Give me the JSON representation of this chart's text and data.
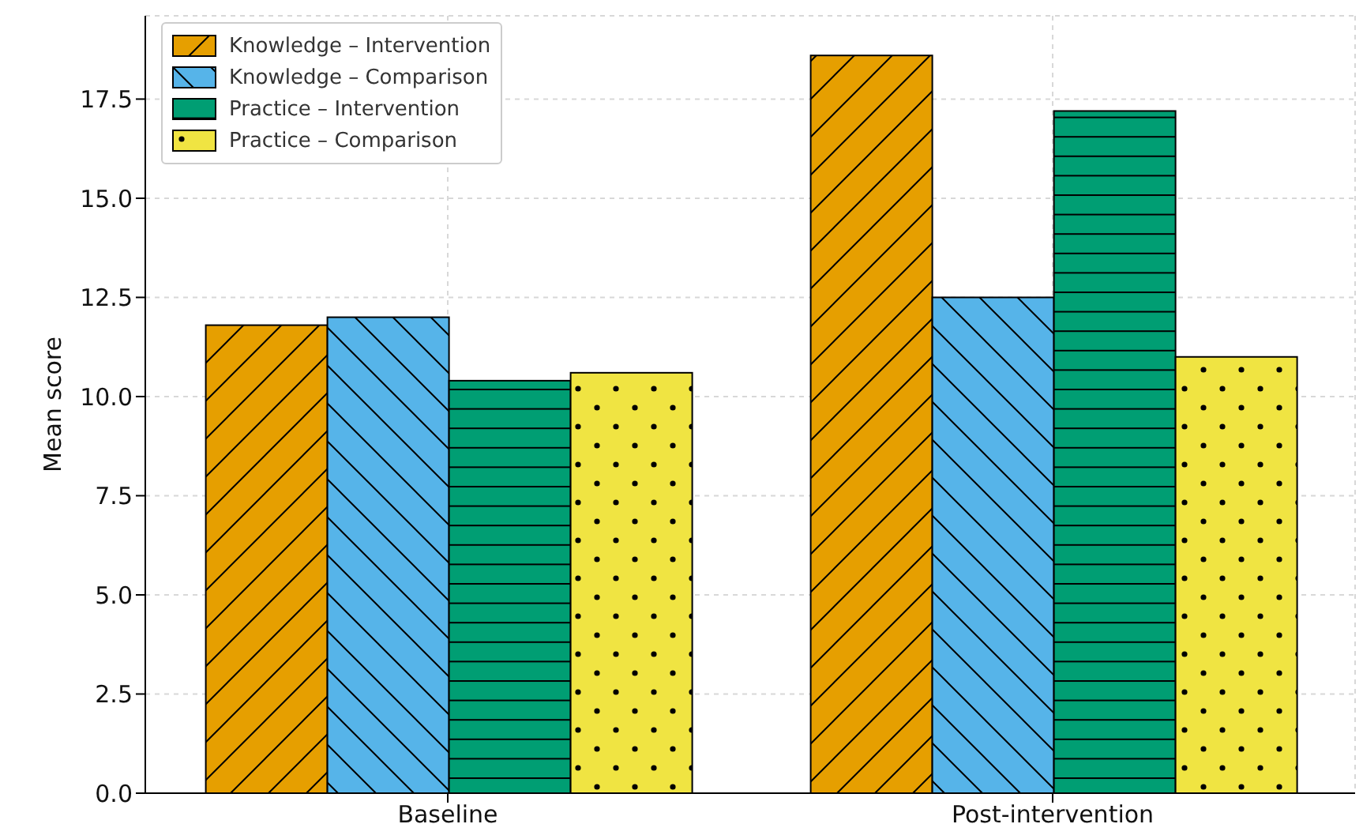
{
  "chart_data": {
    "type": "bar",
    "ylabel": "Mean score",
    "categories": [
      "Baseline",
      "Post-intervention"
    ],
    "series": [
      {
        "name": "Knowledge – Intervention",
        "color": "#e69f00",
        "values": [
          11.8,
          18.6
        ]
      },
      {
        "name": "Knowledge – Comparison",
        "color": "#56b4e9",
        "values": [
          12.0,
          12.5
        ]
      },
      {
        "name": "Practice – Intervention",
        "color": "#009e73",
        "values": [
          10.4,
          17.2
        ]
      },
      {
        "name": "Practice – Comparison",
        "color": "#f0e442",
        "values": [
          10.6,
          11.0
        ]
      }
    ],
    "ylim": [
      0,
      19.6
    ],
    "yticks": [
      {
        "value": 0,
        "label": "0.0"
      },
      2.5,
      {
        "value": 5,
        "label": "5.0"
      },
      7.5,
      {
        "value": 10,
        "label": "10.0"
      },
      12.5,
      {
        "value": 15,
        "label": "15.0"
      },
      17.5
    ],
    "grid": true,
    "legend": "top left"
  }
}
